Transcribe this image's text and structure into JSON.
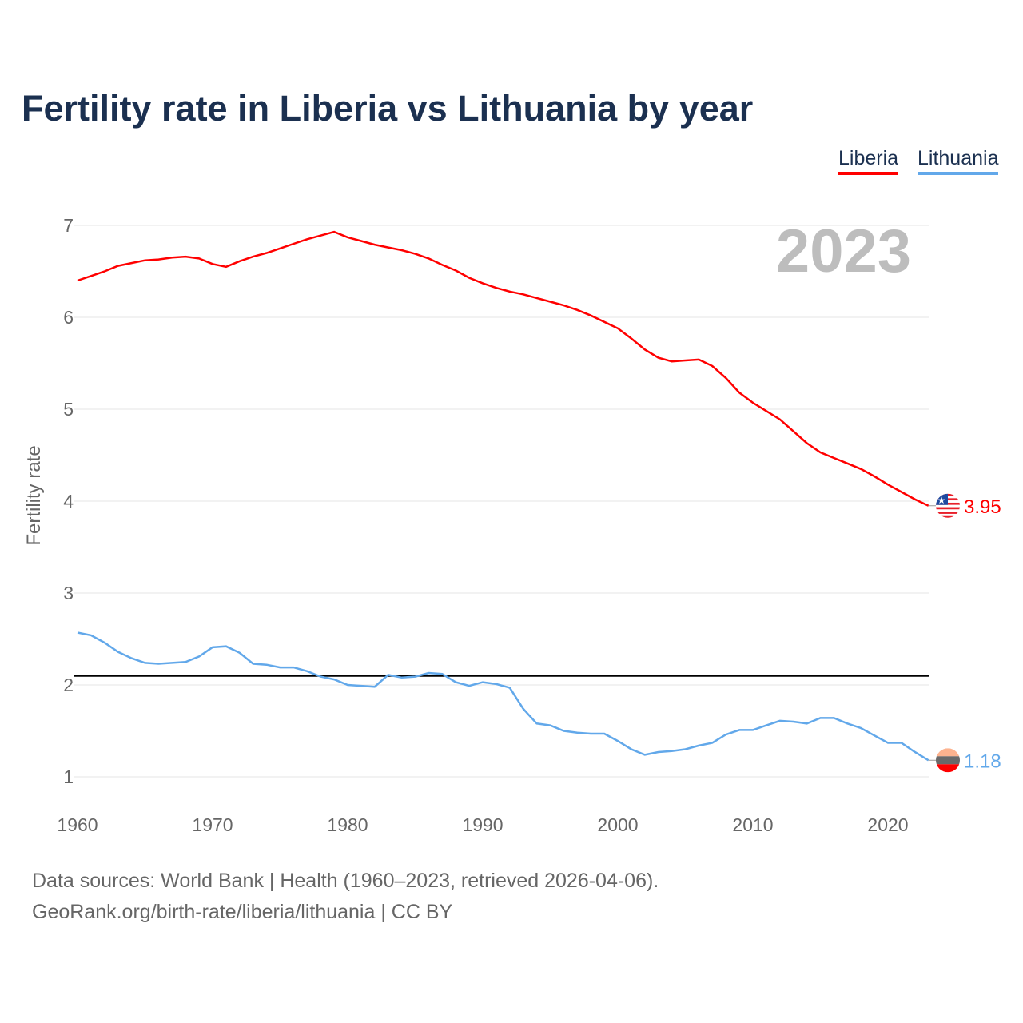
{
  "chart_data": {
    "type": "line",
    "title": "Fertility rate in Liberia vs Lithuania by year",
    "xlabel": "",
    "ylabel": "Fertility rate",
    "xlim": [
      1960,
      2023
    ],
    "ylim": [
      0.8,
      7.2
    ],
    "xticks": [
      1960,
      1970,
      1980,
      1990,
      2000,
      2010,
      2020
    ],
    "yticks": [
      1,
      2,
      3,
      4,
      5,
      6,
      7
    ],
    "grid": true,
    "legend_position": "top-right",
    "year_label": "2023",
    "reference_line": 2.1,
    "x": [
      1960,
      1961,
      1962,
      1963,
      1964,
      1965,
      1966,
      1967,
      1968,
      1969,
      1970,
      1971,
      1972,
      1973,
      1974,
      1975,
      1976,
      1977,
      1978,
      1979,
      1980,
      1981,
      1982,
      1983,
      1984,
      1985,
      1986,
      1987,
      1988,
      1989,
      1990,
      1991,
      1992,
      1993,
      1994,
      1995,
      1996,
      1997,
      1998,
      1999,
      2000,
      2001,
      2002,
      2003,
      2004,
      2005,
      2006,
      2007,
      2008,
      2009,
      2010,
      2011,
      2012,
      2013,
      2014,
      2015,
      2016,
      2017,
      2018,
      2019,
      2020,
      2021,
      2022,
      2023
    ],
    "series": [
      {
        "name": "Liberia",
        "color": "#ff0000",
        "end_label": "3.95",
        "values": [
          6.4,
          6.45,
          6.5,
          6.56,
          6.59,
          6.62,
          6.63,
          6.65,
          6.66,
          6.64,
          6.58,
          6.55,
          6.61,
          6.66,
          6.7,
          6.75,
          6.8,
          6.85,
          6.89,
          6.93,
          6.87,
          6.83,
          6.79,
          6.76,
          6.73,
          6.69,
          6.64,
          6.57,
          6.51,
          6.43,
          6.37,
          6.32,
          6.28,
          6.25,
          6.21,
          6.17,
          6.13,
          6.08,
          6.02,
          5.95,
          5.88,
          5.77,
          5.65,
          5.56,
          5.52,
          5.53,
          5.54,
          5.47,
          5.34,
          5.18,
          5.07,
          4.98,
          4.89,
          4.76,
          4.63,
          4.53,
          4.47,
          4.41,
          4.35,
          4.27,
          4.18,
          4.1,
          4.02,
          3.95
        ]
      },
      {
        "name": "Lithuania",
        "color": "#62a8ea",
        "end_label": "1.18",
        "values": [
          2.57,
          2.54,
          2.46,
          2.36,
          2.29,
          2.24,
          2.23,
          2.24,
          2.25,
          2.31,
          2.41,
          2.42,
          2.35,
          2.23,
          2.22,
          2.19,
          2.19,
          2.15,
          2.09,
          2.06,
          2.0,
          1.99,
          1.98,
          2.11,
          2.08,
          2.09,
          2.13,
          2.12,
          2.03,
          1.99,
          2.03,
          2.01,
          1.97,
          1.74,
          1.58,
          1.56,
          1.5,
          1.48,
          1.47,
          1.47,
          1.39,
          1.3,
          1.24,
          1.27,
          1.28,
          1.3,
          1.34,
          1.37,
          1.46,
          1.51,
          1.51,
          1.56,
          1.61,
          1.6,
          1.58,
          1.64,
          1.64,
          1.58,
          1.53,
          1.45,
          1.37,
          1.37,
          1.27,
          1.18
        ]
      }
    ]
  },
  "footer": {
    "line1": "Data sources: World Bank | Health (1960–2023, retrieved 2026-04-06).",
    "line2": "GeoRank.org/birth-rate/liberia/lithuania | CC BY"
  }
}
